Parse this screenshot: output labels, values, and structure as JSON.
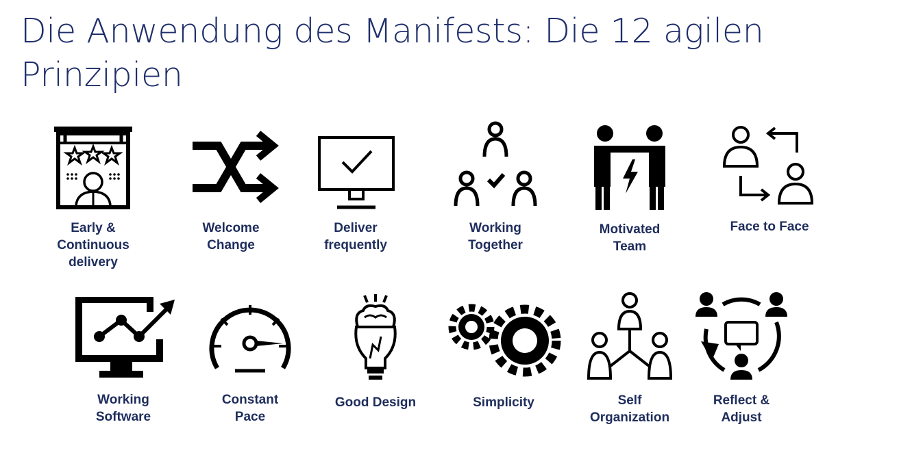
{
  "title": "Die Anwendung des Manifests: Die 12 agilen Prinzipien",
  "colors": {
    "title": "#1f2f6b",
    "label": "#1e2d5c",
    "icon": "#000000"
  },
  "principles": [
    {
      "label": "Early &\nContinuous\ndelivery",
      "icon": "signboard-stars-person-icon"
    },
    {
      "label": "Welcome\nChange",
      "icon": "shuffle-arrows-icon"
    },
    {
      "label": "Deliver\nfrequently",
      "icon": "monitor-checkmark-icon"
    },
    {
      "label": "Working\nTogether",
      "icon": "team-check-icon"
    },
    {
      "label": "Motivated\nTeam",
      "icon": "people-energy-icon"
    },
    {
      "label": "Face to Face",
      "icon": "face-to-face-exchange-icon"
    },
    {
      "label": "Working\nSoftware",
      "icon": "monitor-growth-chart-icon"
    },
    {
      "label": "Constant\nPace",
      "icon": "speedometer-icon"
    },
    {
      "label": "Good Design",
      "icon": "lightbulb-brain-icon"
    },
    {
      "label": "Simplicity",
      "icon": "gears-icon"
    },
    {
      "label": "Self\nOrganization",
      "icon": "hierarchy-people-icon"
    },
    {
      "label": "Reflect &\nAdjust",
      "icon": "feedback-cycle-icon"
    }
  ]
}
